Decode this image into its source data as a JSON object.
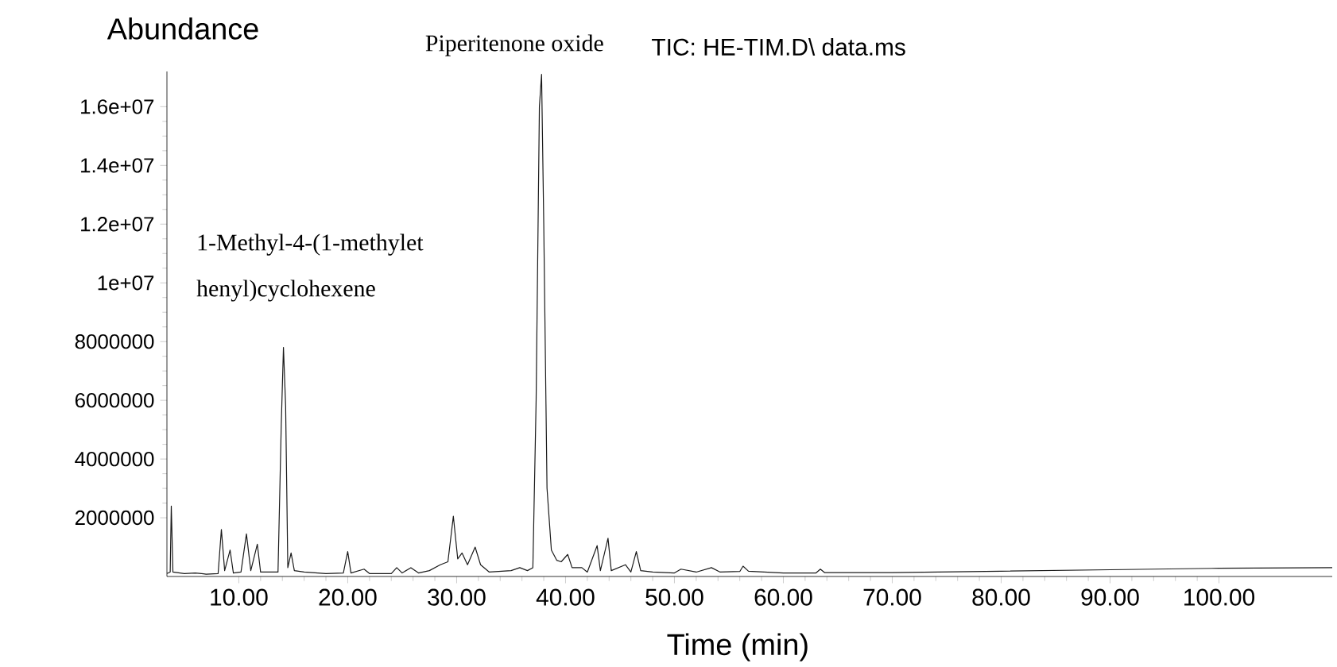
{
  "chart_data": {
    "type": "line",
    "title": "TIC: HE-TIM.D\\ data.ms",
    "xlabel": "Time (min)",
    "ylabel": "Abundance",
    "annotations": [
      {
        "text": "Piperitenone oxide",
        "x": 37.8,
        "y": 17100000
      },
      "1-Methyl-4-(1-methylet",
      "henyl)cyclohexene"
    ],
    "xlim": [
      3.4,
      110.4
    ],
    "ylim": [
      0,
      17200000
    ],
    "xticks": [
      {
        "value": 10,
        "label": "10.00"
      },
      {
        "value": 20,
        "label": "20.00"
      },
      {
        "value": 30,
        "label": "30.00"
      },
      {
        "value": 40,
        "label": "40.00"
      },
      {
        "value": 50,
        "label": "50.00"
      },
      {
        "value": 60,
        "label": "60.00"
      },
      {
        "value": 70,
        "label": "70.00"
      },
      {
        "value": 80,
        "label": "80.00"
      },
      {
        "value": 90,
        "label": "90.00"
      },
      {
        "value": 100,
        "label": "100.00"
      }
    ],
    "yticks": [
      2000000,
      4000000,
      6000000,
      8000000,
      {
        "value": 10000000,
        "label": "1e+07"
      },
      {
        "value": 12000000,
        "label": "1.2e+07"
      },
      {
        "value": 14000000,
        "label": "1.4e+07"
      },
      {
        "value": 16000000,
        "label": "1.6e+07"
      }
    ],
    "marker": "none",
    "grid": false,
    "series": [
      {
        "color": "#1a1a1a",
        "x": [
          3.4,
          3.7,
          3.8,
          3.95,
          5,
          6,
          7,
          8.1,
          8.4,
          8.7,
          9.2,
          9.5,
          10.2,
          10.7,
          11.1,
          11.7,
          12.0,
          13.6,
          13.9,
          14.1,
          14.3,
          14.5,
          14.8,
          15.1,
          16,
          18,
          19.6,
          20.0,
          20.3,
          21.5,
          22,
          24,
          24.5,
          25,
          25.8,
          26.5,
          27.5,
          28.5,
          29.2,
          29.7,
          30.1,
          30.5,
          31,
          31.7,
          32.2,
          33,
          35,
          35.8,
          36.5,
          37.0,
          37.3,
          37.6,
          37.8,
          38.0,
          38.3,
          38.7,
          39.2,
          39.6,
          40.2,
          40.6,
          41.5,
          42.0,
          42.9,
          43.2,
          43.9,
          44.2,
          45.5,
          46,
          46.5,
          46.9,
          48,
          50,
          50.6,
          52,
          53.4,
          54.2,
          56,
          56.3,
          56.8,
          60,
          63,
          63.4,
          63.8,
          70,
          80,
          90,
          100,
          110.4
        ],
        "values": [
          100000,
          150000,
          2400000,
          150000,
          100000,
          120000,
          80000,
          100000,
          1600000,
          200000,
          900000,
          120000,
          150000,
          1450000,
          200000,
          1100000,
          150000,
          150000,
          5200000,
          7800000,
          5800000,
          300000,
          800000,
          200000,
          150000,
          100000,
          120000,
          850000,
          120000,
          250000,
          100000,
          100000,
          300000,
          120000,
          300000,
          120000,
          200000,
          400000,
          500000,
          2050000,
          600000,
          800000,
          400000,
          1000000,
          400000,
          150000,
          200000,
          300000,
          200000,
          300000,
          6000000,
          16000000,
          17100000,
          12000000,
          3000000,
          900000,
          550000,
          500000,
          750000,
          300000,
          300000,
          150000,
          1050000,
          200000,
          1300000,
          200000,
          400000,
          150000,
          850000,
          200000,
          150000,
          120000,
          250000,
          150000,
          300000,
          150000,
          170000,
          350000,
          180000,
          120000,
          120000,
          250000,
          130000,
          130000,
          180000,
          230000,
          280000,
          300000
        ]
      }
    ]
  }
}
